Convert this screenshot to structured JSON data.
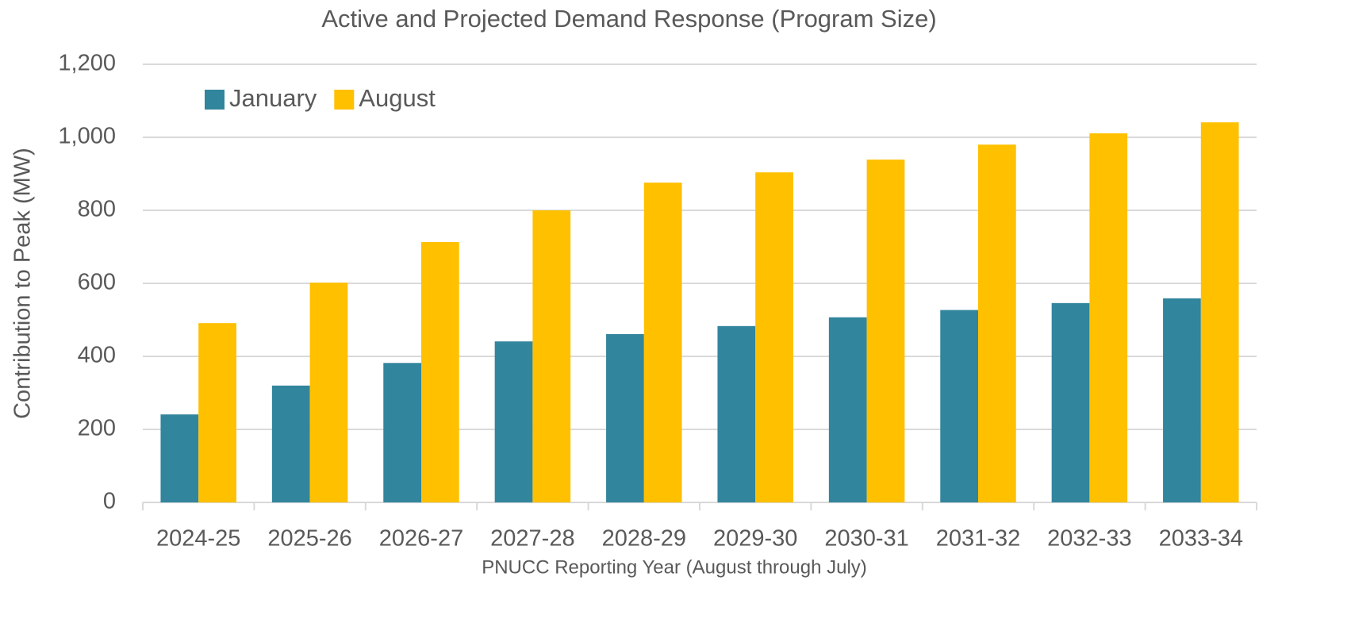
{
  "chart_data": {
    "type": "bar",
    "title": "Active and Projected Demand Response (Program Size)",
    "x_label": "PNUCC Reporting Year (August through July)",
    "y_label": "Contribution to Peak (MW)",
    "categories": [
      "2024-25",
      "2025-26",
      "2026-27",
      "2027-28",
      "2028-29",
      "2029-30",
      "2030-31",
      "2031-32",
      "2032-33",
      "2033-34"
    ],
    "series": [
      {
        "name": "January",
        "color": "#31859c",
        "values": [
          241,
          320,
          382,
          441,
          461,
          483,
          507,
          527,
          546,
          559
        ]
      },
      {
        "name": "August",
        "color": "#ffc000",
        "values": [
          491,
          602,
          713,
          800,
          876,
          904,
          939,
          980,
          1011,
          1041
        ]
      }
    ],
    "ylim": [
      0,
      1200
    ],
    "yticks": [
      0,
      200,
      400,
      600,
      800,
      {
        "value": 1000,
        "label": "1,000"
      },
      {
        "value": 1200,
        "label": "1,200"
      }
    ],
    "grid": true,
    "legend": "top-left"
  }
}
